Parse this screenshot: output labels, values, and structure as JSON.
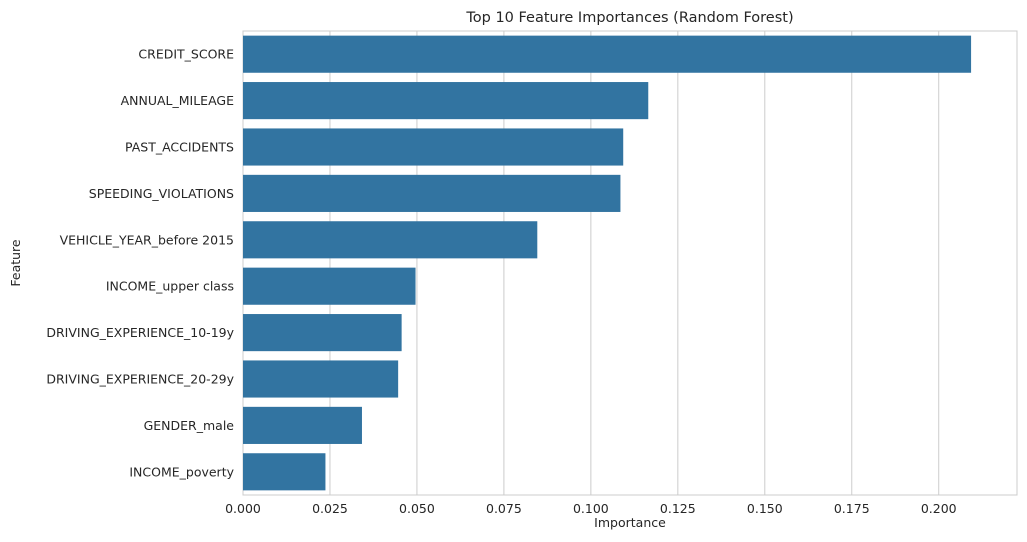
{
  "chart_data": {
    "type": "bar",
    "orientation": "horizontal",
    "title": "Top 10 Feature Importances (Random Forest)",
    "xlabel": "Importance",
    "ylabel": "Feature",
    "categories": [
      "CREDIT_SCORE",
      "ANNUAL_MILEAGE",
      "PAST_ACCIDENTS",
      "SPEEDING_VIOLATIONS",
      "VEHICLE_YEAR_before 2015",
      "INCOME_upper class",
      "DRIVING_EXPERIENCE_10-19y",
      "DRIVING_EXPERIENCE_20-29y",
      "GENDER_male",
      "INCOME_poverty"
    ],
    "values": [
      0.2093,
      0.1165,
      0.1093,
      0.1085,
      0.0846,
      0.0496,
      0.0456,
      0.0446,
      0.0342,
      0.0237
    ],
    "xlim": [
      0,
      0.2225
    ],
    "xticks": [
      0.0,
      0.025,
      0.05,
      0.075,
      0.1,
      0.125,
      0.15,
      0.175,
      0.2
    ],
    "xtick_labels": [
      "0.000",
      "0.025",
      "0.050",
      "0.075",
      "0.100",
      "0.125",
      "0.150",
      "0.175",
      "0.200"
    ],
    "grid": "vertical",
    "bar_color": "#3274a1",
    "grid_color": "#cccccc",
    "frame_color": "#cccccc"
  }
}
